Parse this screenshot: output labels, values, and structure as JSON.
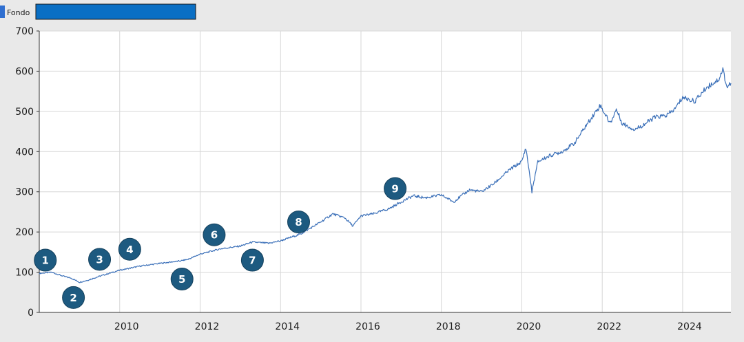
{
  "colors": {
    "background": "#e9e9e9",
    "plot_background": "#ffffff",
    "series": "#3a6fb8",
    "legend_bar": "#0a6fc4",
    "marker": "#1d5a80",
    "grid": "#d6d6d6"
  },
  "chart_data": {
    "type": "line",
    "title": "",
    "xlabel": "",
    "ylabel": "",
    "xlim": [
      2008.0,
      2025.2
    ],
    "ylim": [
      0,
      700
    ],
    "grid": true,
    "legend": {
      "placement": "top-left",
      "entries": [
        {
          "label": "Fondo"
        }
      ]
    },
    "x_ticks": [
      2010,
      2012,
      2014,
      2016,
      2018,
      2020,
      2022,
      2024
    ],
    "y_ticks": [
      0,
      100,
      200,
      300,
      400,
      500,
      600,
      700
    ],
    "series": [
      {
        "name": "Fondo",
        "x": [
          2008.0,
          2008.3,
          2008.6,
          2008.8,
          2009.0,
          2009.2,
          2009.5,
          2010.0,
          2010.5,
          2011.0,
          2011.5,
          2011.7,
          2012.0,
          2012.5,
          2013.0,
          2013.3,
          2013.7,
          2014.0,
          2014.5,
          2015.0,
          2015.3,
          2015.6,
          2015.8,
          2016.0,
          2016.3,
          2016.7,
          2017.0,
          2017.3,
          2017.6,
          2018.0,
          2018.3,
          2018.7,
          2019.0,
          2019.3,
          2019.7,
          2020.0,
          2020.1,
          2020.2,
          2020.25,
          2020.4,
          2020.7,
          2021.0,
          2021.3,
          2021.6,
          2021.95,
          2022.2,
          2022.35,
          2022.5,
          2022.8,
          2023.0,
          2023.3,
          2023.6,
          2023.8,
          2024.0,
          2024.3,
          2024.6,
          2024.9,
          2025.0,
          2025.1,
          2025.2
        ],
        "y": [
          97,
          100,
          90,
          85,
          75,
          80,
          90,
          105,
          115,
          122,
          128,
          132,
          145,
          158,
          165,
          175,
          172,
          178,
          195,
          225,
          245,
          235,
          215,
          240,
          245,
          258,
          275,
          290,
          285,
          292,
          275,
          305,
          300,
          320,
          355,
          375,
          410,
          340,
          300,
          375,
          390,
          400,
          420,
          465,
          515,
          470,
          505,
          470,
          455,
          465,
          485,
          490,
          505,
          535,
          525,
          560,
          580,
          605,
          560,
          570
        ]
      }
    ],
    "annotations": [
      {
        "label": "1",
        "x": 2008.15,
        "y": 130
      },
      {
        "label": "2",
        "x": 2008.85,
        "y": 37
      },
      {
        "label": "3",
        "x": 2009.5,
        "y": 132
      },
      {
        "label": "4",
        "x": 2010.25,
        "y": 157
      },
      {
        "label": "5",
        "x": 2011.55,
        "y": 83
      },
      {
        "label": "6",
        "x": 2012.35,
        "y": 193
      },
      {
        "label": "7",
        "x": 2013.3,
        "y": 130
      },
      {
        "label": "8",
        "x": 2014.45,
        "y": 225
      },
      {
        "label": "9",
        "x": 2016.85,
        "y": 308
      }
    ]
  }
}
